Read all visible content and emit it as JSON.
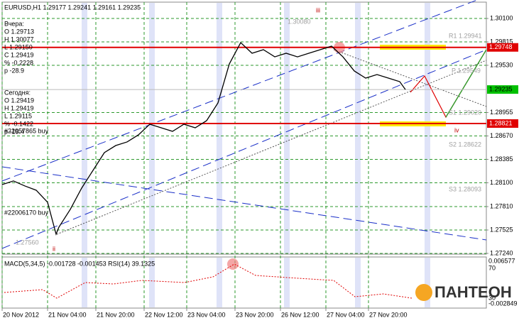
{
  "chart_data": {
    "type": "line",
    "title": "EURUSD,H1  1.29177 1.29241 1.29161 1.29235",
    "x": [
      0,
      4,
      8,
      12,
      16,
      19,
      20,
      24,
      28,
      32,
      36,
      40,
      44,
      48,
      52,
      56,
      60,
      64,
      68,
      72,
      76,
      80,
      84,
      88,
      92,
      96,
      100,
      104,
      108,
      112,
      116,
      120,
      124,
      128,
      132,
      136,
      140,
      142
    ],
    "series": [
      {
        "color": "#000000",
        "values": [
          1.28078,
          1.28122,
          1.28061,
          1.28009,
          1.27862,
          1.27474,
          1.2756,
          1.27776,
          1.28035,
          1.28251,
          1.28467,
          1.28553,
          1.28597,
          1.28683,
          1.28813,
          1.28769,
          1.28726,
          1.28813,
          1.28769,
          1.28856,
          1.29072,
          1.29547,
          1.29806,
          1.29677,
          1.2972,
          1.29633,
          1.29677,
          1.29633,
          1.29677,
          1.2972,
          1.29763,
          1.29633,
          1.29461,
          1.29374,
          1.29417,
          1.29374,
          1.29331,
          1.29235
        ]
      }
    ],
    "xlim": [
      0,
      170.5
    ],
    "xticks": [
      {
        "value": 0,
        "label": "20 Nov 2012"
      },
      {
        "value": 16,
        "label": "21 Nov 04:00"
      },
      {
        "value": 33,
        "label": "21 Nov 20:00"
      },
      {
        "value": 50,
        "label": "22 Nov 12:00"
      },
      {
        "value": 65,
        "label": "23 Nov 04:00"
      },
      {
        "value": 82,
        "label": "23 Nov 20:00"
      },
      {
        "value": 98,
        "label": "26 Nov 12:00"
      },
      {
        "value": 114,
        "label": "27 Nov 04:00"
      },
      {
        "value": 129,
        "label": "27 Nov 20:00"
      }
    ],
    "ylim": [
      1.27231,
      1.30299
    ],
    "yticks": [
      {
        "value": 1.301,
        "label": "1.30100"
      },
      1.29815,
      {
        "value": 1.2953,
        "label": "1.29530"
      },
      1.28955,
      {
        "value": 1.2867,
        "label": "1.28670"
      },
      1.28385,
      {
        "value": 1.281,
        "label": "1.28100"
      },
      {
        "value": 1.2781,
        "label": "1.27810"
      },
      1.27525,
      {
        "value": 1.2724,
        "label": "1.27240"
      }
    ],
    "grid": true,
    "levels": [
      1.29748,
      1.28821
    ],
    "level_color": "#e00000",
    "last_price": 1.29235,
    "last_color": "#00c000",
    "info": {
      "yesterday": [
        "Вчера:",
        "O 1.29713",
        "H 1.30077",
        "L 1.29150",
        "C 1.29419",
        "% -0.2228",
        "p -28.9"
      ],
      "today": [
        "Сегодня:",
        "O 1.29419",
        "H 1.29419",
        "L 1.29115",
        "% -0.1422",
        "p -18.4"
      ]
    },
    "annotations": [
      "#22057865 buy",
      "#22006170 buy",
      "iii",
      "ii",
      "iv",
      "1.30080",
      "1.27560",
      "R1 1.29941",
      "P 1.29549",
      "S1 1.29020",
      "S2 1.28622",
      "S3 1.28093"
    ],
    "indicator": {
      "label": "MACD(5,34,5) -0.001728 -0.001453 RSI(14) 39.1325",
      "scale": [
        "0.006577",
        "70",
        "30",
        "-0.002849"
      ]
    },
    "logo": "ПАНТЕОН"
  }
}
